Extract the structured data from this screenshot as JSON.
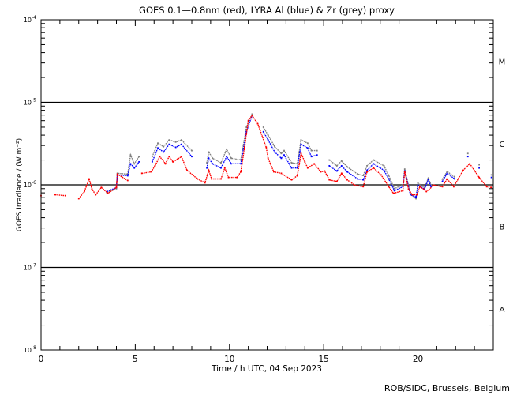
{
  "chart_data": {
    "type": "scatter",
    "title": "GOES 0.1—0.8nm (red), LYRA Al (blue) & Zr (grey) proxy",
    "xlabel": "Time / h UTC, 04 Sep 2023",
    "ylabel": "GOES Irradiance / (W m⁻²)",
    "xlim": [
      0,
      24
    ],
    "ylim": [
      1e-08,
      0.0001
    ],
    "yscale": "log",
    "x_ticks": [
      0,
      5,
      10,
      15,
      20
    ],
    "y_ticks": [
      {
        "base": "10",
        "exp": "-8",
        "value": 1e-08
      },
      {
        "base": "10",
        "exp": "-7",
        "value": 1e-07
      },
      {
        "base": "10",
        "exp": "-6",
        "value": 1e-06
      },
      {
        "base": "10",
        "exp": "-5",
        "value": 1e-05
      },
      {
        "base": "10",
        "exp": "-4",
        "value": 0.0001
      }
    ],
    "flare_classes": [
      {
        "label": "A",
        "low": 1e-08,
        "high": 1e-07
      },
      {
        "label": "B",
        "low": 1e-07,
        "high": 1e-06
      },
      {
        "label": "C",
        "low": 1e-06,
        "high": 1e-05
      },
      {
        "label": "M",
        "low": 1e-05,
        "high": 0.0001
      }
    ],
    "class_lines": [
      1e-07,
      1e-06,
      1e-05
    ],
    "series": [
      {
        "name": "GOES 0.1-0.8nm",
        "color": "#ff0000",
        "points": [
          [
            0,
            7.4e-07
          ],
          [
            0.75,
            7.6e-07
          ],
          [
            1.3,
            7.4e-07
          ],
          [
            2.0,
            6.8e-07
          ],
          [
            2.3,
            8.3e-07
          ],
          [
            2.55,
            1.18e-06
          ],
          [
            2.7,
            8.9e-07
          ],
          [
            2.9,
            7.6e-07
          ],
          [
            3.2,
            9.3e-07
          ],
          [
            3.55,
            7.9e-07
          ],
          [
            4.0,
            9.3e-07
          ],
          [
            4.05,
            1.35e-06
          ],
          [
            4.6,
            1.13e-06
          ],
          [
            5.35,
            1.38e-06
          ],
          [
            5.85,
            1.44e-06
          ],
          [
            6.05,
            1.7e-06
          ],
          [
            6.3,
            2.2e-06
          ],
          [
            6.6,
            1.8e-06
          ],
          [
            6.8,
            2.2e-06
          ],
          [
            7.0,
            1.9e-06
          ],
          [
            7.25,
            2.05e-06
          ],
          [
            7.45,
            2.2e-06
          ],
          [
            7.75,
            1.5e-06
          ],
          [
            8.3,
            1.18e-06
          ],
          [
            8.7,
            1.06e-06
          ],
          [
            8.9,
            1.5e-06
          ],
          [
            9.05,
            1.18e-06
          ],
          [
            9.55,
            1.18e-06
          ],
          [
            9.75,
            1.6e-06
          ],
          [
            9.95,
            1.23e-06
          ],
          [
            10.4,
            1.23e-06
          ],
          [
            10.6,
            1.44e-06
          ],
          [
            10.8,
            2.85e-06
          ],
          [
            11.0,
            6e-06
          ],
          [
            11.2,
            6.9e-06
          ],
          [
            11.5,
            5.5e-06
          ],
          [
            11.95,
            2.85e-06
          ],
          [
            12.05,
            2.1e-06
          ],
          [
            12.35,
            1.44e-06
          ],
          [
            12.75,
            1.38e-06
          ],
          [
            13.3,
            1.15e-06
          ],
          [
            13.6,
            1.29e-06
          ],
          [
            13.8,
            2.4e-06
          ],
          [
            14.0,
            1.9e-06
          ],
          [
            14.15,
            1.6e-06
          ],
          [
            14.5,
            1.8e-06
          ],
          [
            14.85,
            1.44e-06
          ],
          [
            15.05,
            1.47e-06
          ],
          [
            15.3,
            1.15e-06
          ],
          [
            15.7,
            1.1e-06
          ],
          [
            15.95,
            1.38e-06
          ],
          [
            16.25,
            1.15e-06
          ],
          [
            16.65,
            9.9e-07
          ],
          [
            17.1,
            9.5e-07
          ],
          [
            17.3,
            1.44e-06
          ],
          [
            17.65,
            1.6e-06
          ],
          [
            18.05,
            1.32e-06
          ],
          [
            18.45,
            9.5e-07
          ],
          [
            18.7,
            7.9e-07
          ],
          [
            19.2,
            8.5e-07
          ],
          [
            19.3,
            1.44e-06
          ],
          [
            19.5,
            8.9e-07
          ],
          [
            19.7,
            7.6e-07
          ],
          [
            19.95,
            7.6e-07
          ],
          [
            20.1,
            9.5e-07
          ],
          [
            20.3,
            8.9e-07
          ],
          [
            20.45,
            8.3e-07
          ],
          [
            20.85,
            9.9e-07
          ],
          [
            21.3,
            9.5e-07
          ],
          [
            21.55,
            1.18e-06
          ],
          [
            21.9,
            9.5e-07
          ],
          [
            22.4,
            1.5e-06
          ],
          [
            22.75,
            1.8e-06
          ],
          [
            23.25,
            1.23e-06
          ],
          [
            23.65,
            9.5e-07
          ],
          [
            23.9,
            9.3e-07
          ]
        ]
      },
      {
        "name": "LYRA Al proxy",
        "color": "#0000ff",
        "points": [
          [
            3.5,
            8.3e-07
          ],
          [
            4.0,
            9.3e-07
          ],
          [
            4.05,
            1.32e-06
          ],
          [
            4.6,
            1.29e-06
          ],
          [
            4.75,
            1.8e-06
          ],
          [
            4.95,
            1.6e-06
          ],
          [
            5.2,
            1.9e-06
          ],
          [
            5.9,
            1.9e-06
          ],
          [
            6.2,
            2.8e-06
          ],
          [
            6.5,
            2.5e-06
          ],
          [
            6.8,
            3.1e-06
          ],
          [
            7.15,
            2.85e-06
          ],
          [
            7.45,
            3.1e-06
          ],
          [
            8.0,
            2.2e-06
          ],
          [
            8.8,
            1.6e-06
          ],
          [
            8.9,
            2.1e-06
          ],
          [
            9.1,
            1.8e-06
          ],
          [
            9.55,
            1.6e-06
          ],
          [
            9.85,
            2.2e-06
          ],
          [
            10.1,
            1.8e-06
          ],
          [
            10.6,
            1.8e-06
          ],
          [
            10.9,
            4.4e-06
          ],
          [
            11.2,
            6.9e-06
          ],
          [
            11.8,
            4.4e-06
          ],
          [
            12.05,
            3.5e-06
          ],
          [
            12.4,
            2.5e-06
          ],
          [
            12.75,
            2.1e-06
          ],
          [
            12.9,
            2.3e-06
          ],
          [
            13.3,
            1.6e-06
          ],
          [
            13.6,
            1.6e-06
          ],
          [
            13.8,
            3.1e-06
          ],
          [
            14.15,
            2.8e-06
          ],
          [
            14.35,
            2.2e-06
          ],
          [
            14.65,
            2.3e-06
          ],
          [
            15.3,
            1.7e-06
          ],
          [
            15.7,
            1.47e-06
          ],
          [
            15.95,
            1.7e-06
          ],
          [
            16.25,
            1.44e-06
          ],
          [
            16.8,
            1.18e-06
          ],
          [
            17.1,
            1.15e-06
          ],
          [
            17.3,
            1.5e-06
          ],
          [
            17.65,
            1.8e-06
          ],
          [
            18.2,
            1.5e-06
          ],
          [
            18.45,
            1.18e-06
          ],
          [
            18.75,
            8.5e-07
          ],
          [
            19.2,
            9.5e-07
          ],
          [
            19.3,
            1.47e-06
          ],
          [
            19.6,
            7.6e-07
          ],
          [
            19.9,
            7.1e-07
          ],
          [
            20.0,
            9.9e-07
          ],
          [
            20.35,
            8.9e-07
          ],
          [
            20.55,
            1.15e-06
          ],
          [
            20.7,
            9.5e-07
          ],
          [
            21.3,
            1.1e-06
          ],
          [
            21.55,
            1.38e-06
          ],
          [
            21.95,
            1.18e-06
          ],
          [
            22.65,
            2.2e-06
          ],
          [
            23.25,
            1.6e-06
          ],
          [
            23.9,
            1.23e-06
          ]
        ]
      },
      {
        "name": "LYRA Zr proxy",
        "color": "#808080",
        "points": [
          [
            3.5,
            8e-07
          ],
          [
            4.0,
            9e-07
          ],
          [
            4.05,
            1.38e-06
          ],
          [
            4.6,
            1.35e-06
          ],
          [
            4.75,
            2.3e-06
          ],
          [
            4.95,
            1.8e-06
          ],
          [
            5.2,
            2.2e-06
          ],
          [
            5.9,
            2.2e-06
          ],
          [
            6.2,
            3.2e-06
          ],
          [
            6.5,
            2.9e-06
          ],
          [
            6.8,
            3.5e-06
          ],
          [
            7.15,
            3.3e-06
          ],
          [
            7.45,
            3.5e-06
          ],
          [
            8.0,
            2.6e-06
          ],
          [
            8.8,
            1.85e-06
          ],
          [
            8.9,
            2.5e-06
          ],
          [
            9.1,
            2.1e-06
          ],
          [
            9.55,
            1.85e-06
          ],
          [
            9.85,
            2.7e-06
          ],
          [
            10.1,
            2.1e-06
          ],
          [
            10.6,
            2e-06
          ],
          [
            10.9,
            5e-06
          ],
          [
            11.2,
            7.2e-06
          ],
          [
            11.8,
            5e-06
          ],
          [
            12.05,
            4e-06
          ],
          [
            12.4,
            2.9e-06
          ],
          [
            12.75,
            2.4e-06
          ],
          [
            12.9,
            2.6e-06
          ],
          [
            13.3,
            1.85e-06
          ],
          [
            13.6,
            1.8e-06
          ],
          [
            13.8,
            3.5e-06
          ],
          [
            14.15,
            3.2e-06
          ],
          [
            14.35,
            2.6e-06
          ],
          [
            14.65,
            2.6e-06
          ],
          [
            15.3,
            2e-06
          ],
          [
            15.7,
            1.7e-06
          ],
          [
            15.95,
            1.95e-06
          ],
          [
            16.25,
            1.65e-06
          ],
          [
            16.8,
            1.35e-06
          ],
          [
            17.1,
            1.3e-06
          ],
          [
            17.3,
            1.7e-06
          ],
          [
            17.65,
            2e-06
          ],
          [
            18.2,
            1.7e-06
          ],
          [
            18.45,
            1.3e-06
          ],
          [
            18.75,
            9e-07
          ],
          [
            19.2,
            1e-06
          ],
          [
            19.3,
            1.55e-06
          ],
          [
            19.6,
            7.8e-07
          ],
          [
            19.9,
            6.8e-07
          ],
          [
            20.0,
            1.05e-06
          ],
          [
            20.35,
            9.3e-07
          ],
          [
            20.55,
            1.2e-06
          ],
          [
            20.7,
            1e-06
          ],
          [
            21.3,
            1.17e-06
          ],
          [
            21.55,
            1.45e-06
          ],
          [
            21.95,
            1.25e-06
          ],
          [
            22.65,
            2.4e-06
          ],
          [
            23.25,
            1.75e-06
          ],
          [
            23.9,
            1.32e-06
          ]
        ]
      }
    ],
    "credit": "ROB/SIDC, Brussels, Belgium",
    "grid": false
  }
}
